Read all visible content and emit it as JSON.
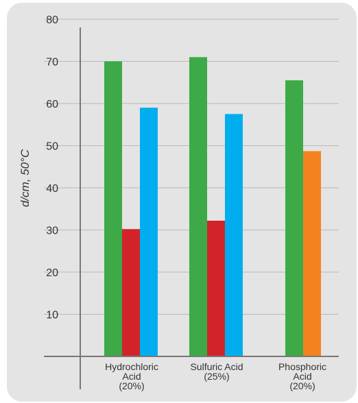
{
  "chart_data": {
    "type": "bar",
    "ylabel": "d/cm, 50°C",
    "xlabel": "",
    "ylim": [
      0,
      80
    ],
    "y_ticks": [
      "10",
      "20",
      "30",
      "40",
      "50",
      "60",
      "70",
      "80"
    ],
    "grid": true,
    "categories": [
      [
        "Hydrochloric",
        "Acid",
        "(20%)"
      ],
      [
        "Sulfuric Acid",
        "(25%)"
      ],
      [
        "Phosphoric",
        "Acid",
        "(20%)"
      ]
    ],
    "groups": [
      {
        "bars": [
          {
            "value": 70,
            "color": "#3daa47"
          },
          {
            "value": 30.2,
            "color": "#d2232a"
          },
          {
            "value": 59,
            "color": "#00aeef"
          }
        ]
      },
      {
        "bars": [
          {
            "value": 71,
            "color": "#3daa47"
          },
          {
            "value": 32.2,
            "color": "#d2232a"
          },
          {
            "value": 57.5,
            "color": "#00aeef"
          }
        ]
      },
      {
        "bars": [
          {
            "value": 65.5,
            "color": "#3daa47"
          },
          {
            "value": 48.7,
            "color": "#f58220"
          }
        ]
      }
    ]
  }
}
